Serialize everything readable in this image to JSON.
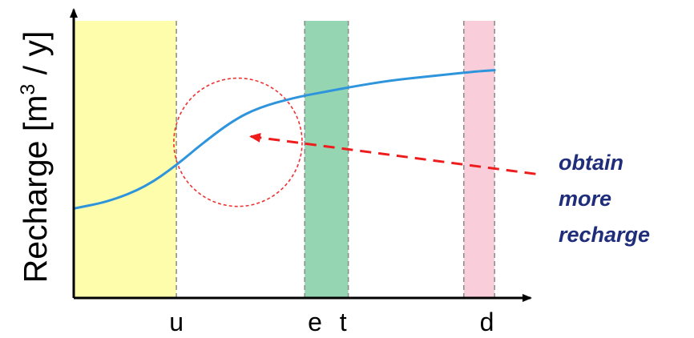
{
  "chart_data": {
    "type": "line",
    "ylabel_main": "Recharge [m",
    "ylabel_sup": "3",
    "ylabel_tail": " / y]",
    "x_ticks": [
      {
        "label": "u",
        "x": 2.0
      },
      {
        "label": "e",
        "x": 4.7
      },
      {
        "label": "t",
        "x": 5.25
      },
      {
        "label": "d",
        "x": 8.05
      }
    ],
    "xlim": [
      0,
      8.9
    ],
    "ylim": [
      0,
      10
    ],
    "zones": [
      {
        "name": "yellow",
        "x0": 0.0,
        "x1": 2.0,
        "color": "#fdfdac"
      },
      {
        "name": "green",
        "x0": 4.5,
        "x1": 5.35,
        "color": "#95d5b2"
      },
      {
        "name": "pink",
        "x0": 7.6,
        "x1": 8.2,
        "color": "#f9cdd9"
      }
    ],
    "series": [
      {
        "color": "#2e94dc",
        "points": [
          [
            0.0,
            3.1
          ],
          [
            0.7,
            3.35
          ],
          [
            1.4,
            3.85
          ],
          [
            2.0,
            4.6
          ],
          [
            2.5,
            5.35
          ],
          [
            3.1,
            6.15
          ],
          [
            3.6,
            6.6
          ],
          [
            4.3,
            6.95
          ],
          [
            4.9,
            7.15
          ],
          [
            5.5,
            7.35
          ],
          [
            6.2,
            7.55
          ],
          [
            7.0,
            7.7
          ],
          [
            7.8,
            7.85
          ],
          [
            8.2,
            7.9
          ]
        ]
      }
    ],
    "annotation": {
      "lines": [
        "obtain",
        "more",
        "recharge"
      ],
      "color": "#1f2d7a",
      "arrow_color": "#ee1c1c",
      "arrow_from": [
        9.0,
        4.3
      ],
      "arrow_to": [
        3.45,
        5.6
      ]
    },
    "highlight_circle": {
      "cx": 3.2,
      "cy": 5.4,
      "r": 1.25,
      "color": "#ee3333"
    }
  }
}
